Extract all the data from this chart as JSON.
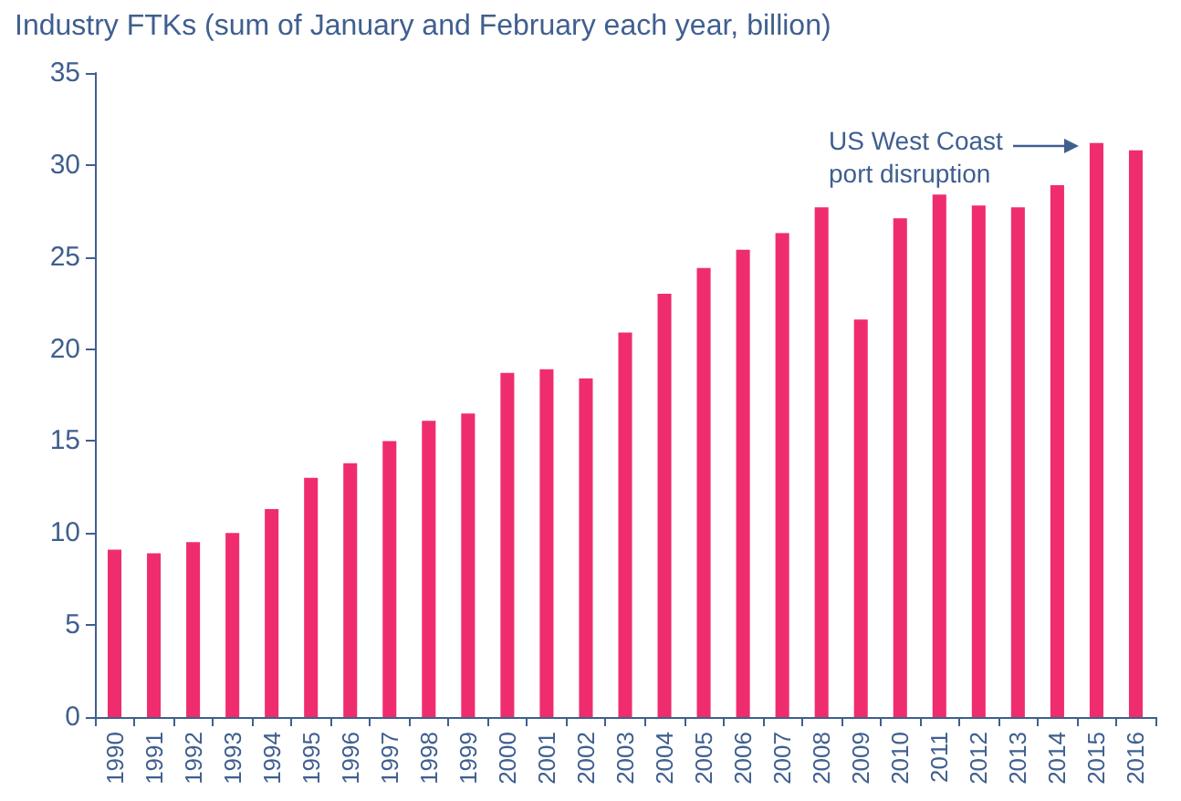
{
  "chart_data": {
    "type": "bar",
    "ylabel": "Industry FTKs (sum of January and February each year, billion)",
    "categories": [
      "1990",
      "1991",
      "1992",
      "1993",
      "1994",
      "1995",
      "1996",
      "1997",
      "1998",
      "1999",
      "2000",
      "2001",
      "2002",
      "2003",
      "2004",
      "2005",
      "2006",
      "2007",
      "2008",
      "2009",
      "2010",
      "2011",
      "2012",
      "2013",
      "2014",
      "2015",
      "2016"
    ],
    "values": [
      9.1,
      8.9,
      9.5,
      10.0,
      11.3,
      13.0,
      13.8,
      15.0,
      16.1,
      16.5,
      18.7,
      18.9,
      18.4,
      20.9,
      23.0,
      24.4,
      25.4,
      26.3,
      27.7,
      21.6,
      27.1,
      28.4,
      27.8,
      27.7,
      28.9,
      31.2,
      30.8
    ],
    "color": "#ef2d6e",
    "ylim": [
      0,
      35
    ],
    "yticks": [
      0,
      5,
      10,
      15,
      20,
      25,
      30,
      35
    ],
    "grid": false,
    "annotations": [
      "US West Coast\nport disruption"
    ]
  }
}
